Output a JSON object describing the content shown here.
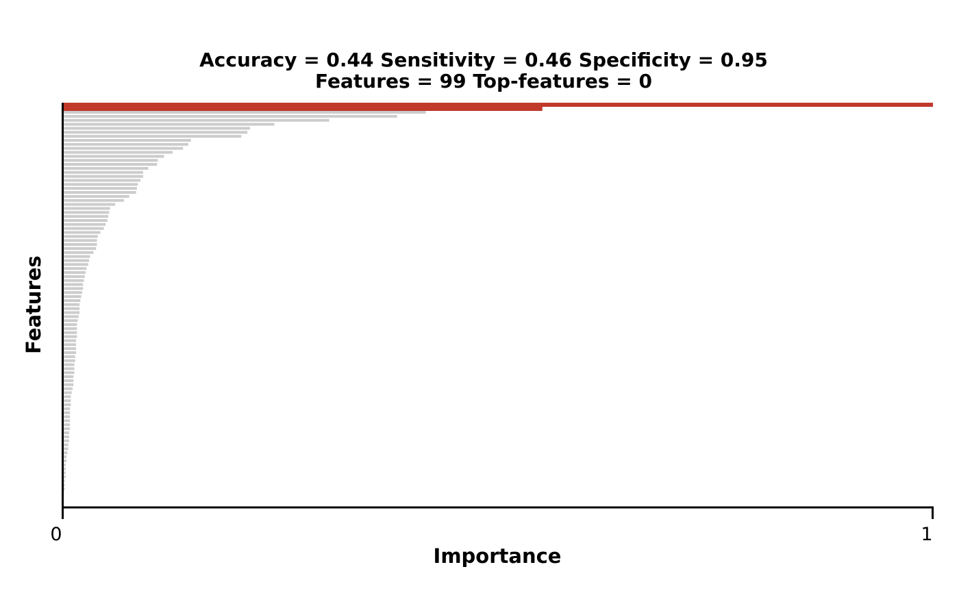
{
  "chart_data": {
    "type": "bar",
    "orientation": "horizontal",
    "title_line1": "Accuracy = 0.44    Sensitivity = 0.46    Specificity = 0.95",
    "title_line2": "Features = 99    Top-features = 0",
    "xlabel": "Importance",
    "ylabel": "Features",
    "xlim": [
      0,
      1
    ],
    "x_ticks": [
      "0",
      "1"
    ],
    "grid": false,
    "legend": "none",
    "colors": {
      "highlight": "#c0392b",
      "default": "#cccccc",
      "axis": "#000000"
    },
    "highlighted": [
      {
        "value": 1.0
      },
      {
        "value": 0.551
      }
    ],
    "values": [
      0.417,
      0.384,
      0.306,
      0.243,
      0.215,
      0.212,
      0.205,
      0.147,
      0.144,
      0.138,
      0.126,
      0.116,
      0.109,
      0.108,
      0.098,
      0.092,
      0.092,
      0.089,
      0.086,
      0.085,
      0.084,
      0.076,
      0.07,
      0.06,
      0.054,
      0.053,
      0.052,
      0.051,
      0.049,
      0.047,
      0.043,
      0.04,
      0.039,
      0.039,
      0.038,
      0.035,
      0.031,
      0.03,
      0.029,
      0.027,
      0.026,
      0.025,
      0.024,
      0.023,
      0.023,
      0.022,
      0.021,
      0.02,
      0.019,
      0.019,
      0.019,
      0.018,
      0.017,
      0.016,
      0.016,
      0.016,
      0.016,
      0.015,
      0.015,
      0.015,
      0.015,
      0.014,
      0.014,
      0.013,
      0.013,
      0.013,
      0.012,
      0.012,
      0.012,
      0.011,
      0.01,
      0.009,
      0.009,
      0.009,
      0.008,
      0.008,
      0.008,
      0.008,
      0.008,
      0.008,
      0.007,
      0.007,
      0.007,
      0.006,
      0.006,
      0.005,
      0.004,
      0.004,
      0.003,
      0.003,
      0.003,
      0.003,
      0.002,
      0.002,
      0.002,
      0.001,
      0.001
    ]
  }
}
